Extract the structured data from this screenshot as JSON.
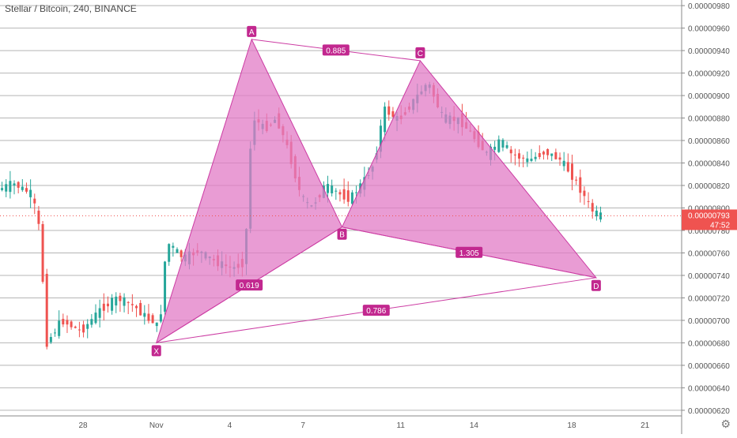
{
  "title": "Stellar / Bitcoin, 240, BINANCE",
  "colors": {
    "up": "#26a69a",
    "down": "#ef5350",
    "pattern_fill": "#e17bc6",
    "pattern_stroke": "#cc3ca3",
    "label_bg": "#c2288f",
    "current_price_bg": "#ef5350",
    "grid": "#b5b5b5"
  },
  "icons": {
    "settings": "gear-icon"
  },
  "current_price": {
    "value": "0.00000793",
    "countdown": "47:52"
  },
  "chart_data": {
    "type": "candlestick",
    "symbol": "Stellar / Bitcoin",
    "interval": "240",
    "exchange": "BINANCE",
    "ylim": [
      6.15e-06,
      9.85e-06
    ],
    "y_ticks": [
      "0.00000620",
      "0.00000640",
      "0.00000660",
      "0.00000680",
      "0.00000700",
      "0.00000720",
      "0.00000740",
      "0.00000760",
      "0.00000780",
      "0.00000800",
      "0.00000820",
      "0.00000840",
      "0.00000860",
      "0.00000880",
      "0.00000900",
      "0.00000920",
      "0.00000940",
      "0.00000960",
      "0.00000980"
    ],
    "x_ticks": [
      {
        "label": "28",
        "day": 28
      },
      {
        "label": "Nov",
        "day": 31
      },
      {
        "label": "4",
        "day": 34
      },
      {
        "label": "7",
        "day": 37
      },
      {
        "label": "11",
        "day": 41
      },
      {
        "label": "14",
        "day": 44
      },
      {
        "label": "18",
        "day": 48
      },
      {
        "label": "21",
        "day": 51
      }
    ],
    "x_range_days": [
      24.6,
      52.5
    ],
    "price_path": [
      [
        24.6,
        8.16e-06
      ],
      [
        25.2,
        8.22e-06
      ],
      [
        26.0,
        8.12e-06
      ],
      [
        26.3,
        7.8e-06
      ],
      [
        26.6,
        6.8e-06
      ],
      [
        27.2,
        7e-06
      ],
      [
        28.0,
        6.9e-06
      ],
      [
        28.8,
        7.1e-06
      ],
      [
        29.5,
        7.2e-06
      ],
      [
        30.2,
        7.12e-06
      ],
      [
        30.8,
        7e-06
      ],
      [
        31.0,
        7e-06
      ],
      [
        31.2,
        6.9e-06
      ],
      [
        31.5,
        7.7e-06
      ],
      [
        32.2,
        7.55e-06
      ],
      [
        32.8,
        7.62e-06
      ],
      [
        33.5,
        7.52e-06
      ],
      [
        34.2,
        7.46e-06
      ],
      [
        34.7,
        7.52e-06
      ],
      [
        35.0,
        8.82e-06
      ],
      [
        35.5,
        8.7e-06
      ],
      [
        36.0,
        8.8e-06
      ],
      [
        36.5,
        8.5e-06
      ],
      [
        37.0,
        8.1e-06
      ],
      [
        37.4,
        8e-06
      ],
      [
        38.0,
        8.2e-06
      ],
      [
        38.6,
        8.12e-06
      ],
      [
        39.0,
        8.08e-06
      ],
      [
        39.6,
        8.25e-06
      ],
      [
        40.0,
        8.4e-06
      ],
      [
        40.4,
        8.88e-06
      ],
      [
        41.0,
        8.78e-06
      ],
      [
        41.6,
        8.95e-06
      ],
      [
        42.2,
        9.12e-06
      ],
      [
        42.8,
        8.8e-06
      ],
      [
        43.5,
        8.78e-06
      ],
      [
        44.0,
        8.65e-06
      ],
      [
        44.6,
        8.48e-06
      ],
      [
        45.2,
        8.6e-06
      ],
      [
        45.6,
        8.48e-06
      ],
      [
        46.3,
        8.42e-06
      ],
      [
        47.0,
        8.5e-06
      ],
      [
        47.6,
        8.43e-06
      ],
      [
        48.0,
        8.32e-06
      ],
      [
        48.5,
        8.14e-06
      ],
      [
        48.9,
        7.98e-06
      ],
      [
        49.2,
        7.93e-06
      ]
    ],
    "pattern": {
      "points": [
        {
          "name": "X",
          "day": 31.0,
          "price": 6.8e-06
        },
        {
          "name": "A",
          "day": 34.9,
          "price": 9.5e-06
        },
        {
          "name": "B",
          "day": 38.6,
          "price": 7.83e-06
        },
        {
          "name": "C",
          "day": 41.8,
          "price": 9.31e-06
        },
        {
          "name": "D",
          "day": 49.0,
          "price": 7.38e-06
        }
      ],
      "ratios": [
        {
          "value": "0.885",
          "between": [
            "A",
            "C"
          ]
        },
        {
          "value": "0.619",
          "between": [
            "X",
            "B"
          ]
        },
        {
          "value": "1.305",
          "between": [
            "B",
            "D"
          ]
        },
        {
          "value": "0.786",
          "between": [
            "X",
            "D"
          ]
        }
      ]
    }
  }
}
